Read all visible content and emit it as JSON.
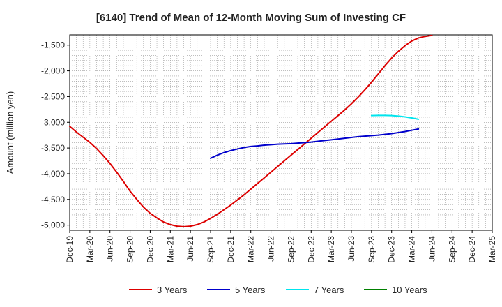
{
  "chart_data": {
    "type": "line",
    "title": "[6140]  Trend of Mean of 12-Month Moving Sum of Investing CF",
    "ylabel": "Amount (million yen)",
    "xlabel": "",
    "ylim": [
      -5100,
      -1300
    ],
    "yticks": [
      -1500,
      -2000,
      -2500,
      -3000,
      -3500,
      -4000,
      -4500,
      -5000
    ],
    "ytick_labels": [
      "-1,500",
      "-2,000",
      "-2,500",
      "-3,000",
      "-3,500",
      "-4,000",
      "-4,500",
      "-5,000"
    ],
    "x_labels": [
      "Dec-19",
      "Mar-20",
      "Jun-20",
      "Sep-20",
      "Dec-20",
      "Mar-21",
      "Jun-21",
      "Sep-21",
      "Dec-21",
      "Mar-22",
      "Jun-22",
      "Sep-22",
      "Dec-22",
      "Mar-23",
      "Jun-23",
      "Sep-23",
      "Dec-23",
      "Mar-24",
      "Jun-24",
      "Sep-24",
      "Dec-24",
      "Mar-25"
    ],
    "months_total": 63,
    "grid": true,
    "legend_position": "bottom",
    "series": [
      {
        "name": "3 Years",
        "color": "#dd0000",
        "start_month": 0,
        "values": [
          -3080,
          -3190,
          -3290,
          -3390,
          -3510,
          -3650,
          -3800,
          -3970,
          -4150,
          -4340,
          -4500,
          -4650,
          -4770,
          -4860,
          -4940,
          -4990,
          -5020,
          -5030,
          -5020,
          -4990,
          -4940,
          -4870,
          -4790,
          -4700,
          -4610,
          -4510,
          -4410,
          -4300,
          -4190,
          -4080,
          -3970,
          -3860,
          -3750,
          -3640,
          -3530,
          -3420,
          -3310,
          -3200,
          -3090,
          -2980,
          -2870,
          -2760,
          -2640,
          -2510,
          -2370,
          -2220,
          -2060,
          -1900,
          -1750,
          -1620,
          -1510,
          -1420,
          -1360,
          -1330,
          -1310
        ]
      },
      {
        "name": "5 Years",
        "color": "#0000cc",
        "start_month": 21,
        "values": [
          -3700,
          -3640,
          -3590,
          -3550,
          -3520,
          -3490,
          -3470,
          -3460,
          -3445,
          -3435,
          -3425,
          -3420,
          -3415,
          -3405,
          -3395,
          -3385,
          -3370,
          -3355,
          -3340,
          -3325,
          -3310,
          -3295,
          -3280,
          -3270,
          -3260,
          -3250,
          -3235,
          -3220,
          -3200,
          -3180,
          -3155,
          -3130
        ]
      },
      {
        "name": "7 Years",
        "color": "#00e5ee",
        "start_month": 45,
        "values": [
          -2870,
          -2865,
          -2865,
          -2870,
          -2880,
          -2895,
          -2915,
          -2940
        ]
      },
      {
        "name": "10 Years",
        "color": "#008000",
        "start_month": null,
        "values": []
      }
    ]
  }
}
